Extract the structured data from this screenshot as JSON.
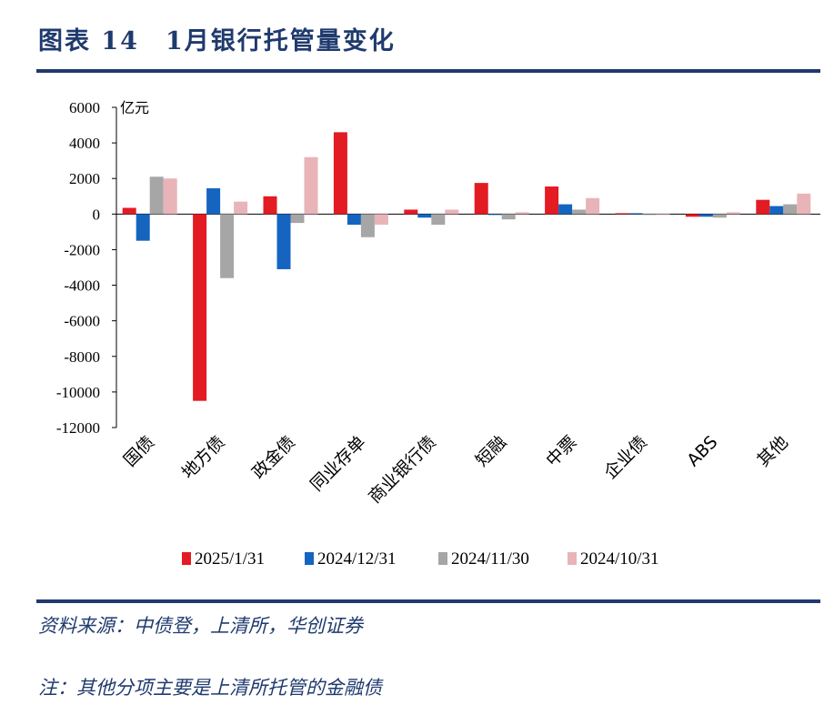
{
  "header": {
    "title": "图表 14　1月银行托管量变化"
  },
  "footer": {
    "source": "资料来源：中债登，上清所，华创证券",
    "note": "注：其他分项主要是上清所托管的金融债"
  },
  "chart_data": {
    "type": "bar",
    "title": "1月银行托管量变化",
    "ylabel": "亿元",
    "xlabel": "",
    "ylim": [
      -12000,
      6000
    ],
    "yticks": [
      6000,
      4000,
      2000,
      0,
      -2000,
      -4000,
      -6000,
      -8000,
      -10000,
      -12000
    ],
    "categories": [
      "国债",
      "地方债",
      "政金债",
      "同业存单",
      "商业银行债",
      "短融",
      "中票",
      "企业债",
      "ABS",
      "其他"
    ],
    "series": [
      {
        "name": "2025/1/31",
        "color": "#e31b23",
        "values": [
          350,
          -10500,
          1000,
          4600,
          250,
          1750,
          1550,
          50,
          -150,
          800
        ]
      },
      {
        "name": "2024/12/31",
        "color": "#1565c0",
        "values": [
          -1500,
          1450,
          -3100,
          -600,
          -200,
          -50,
          550,
          50,
          -150,
          450
        ]
      },
      {
        "name": "2024/11/30",
        "color": "#a6a6a6",
        "values": [
          2100,
          -3600,
          -500,
          -1300,
          -600,
          -300,
          250,
          -50,
          -200,
          550
        ]
      },
      {
        "name": "2024/10/31",
        "color": "#e8b4b8",
        "values": [
          2000,
          700,
          3200,
          -600,
          250,
          100,
          900,
          -50,
          100,
          1150
        ]
      }
    ],
    "legend_position": "bottom",
    "grid": false
  }
}
